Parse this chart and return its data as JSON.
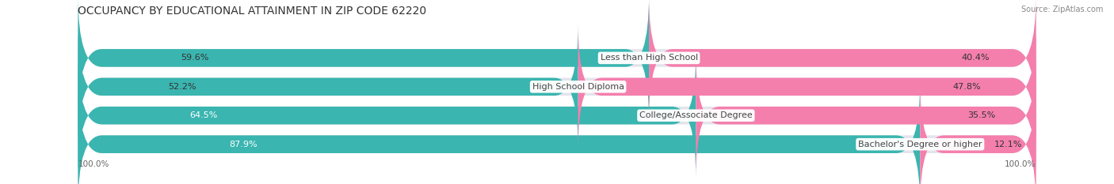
{
  "title": "OCCUPANCY BY EDUCATIONAL ATTAINMENT IN ZIP CODE 62220",
  "source": "Source: ZipAtlas.com",
  "categories": [
    "Less than High School",
    "High School Diploma",
    "College/Associate Degree",
    "Bachelor's Degree or higher"
  ],
  "owner_pct": [
    59.6,
    52.2,
    64.5,
    87.9
  ],
  "renter_pct": [
    40.4,
    47.8,
    35.5,
    12.1
  ],
  "owner_color": "#3ab5b0",
  "renter_color": "#f47fad",
  "bar_bg_color": "#e4e4ec",
  "background_color": "#ffffff",
  "title_fontsize": 10,
  "label_fontsize": 8,
  "pct_fontsize": 8,
  "legend_fontsize": 8,
  "source_fontsize": 7,
  "axis_label_left": "100.0%",
  "axis_label_right": "100.0%",
  "owner_pct_colors": [
    "#333333",
    "#333333",
    "white",
    "white"
  ],
  "renter_pct_colors": [
    "#333333",
    "#333333",
    "#333333",
    "#333333"
  ]
}
